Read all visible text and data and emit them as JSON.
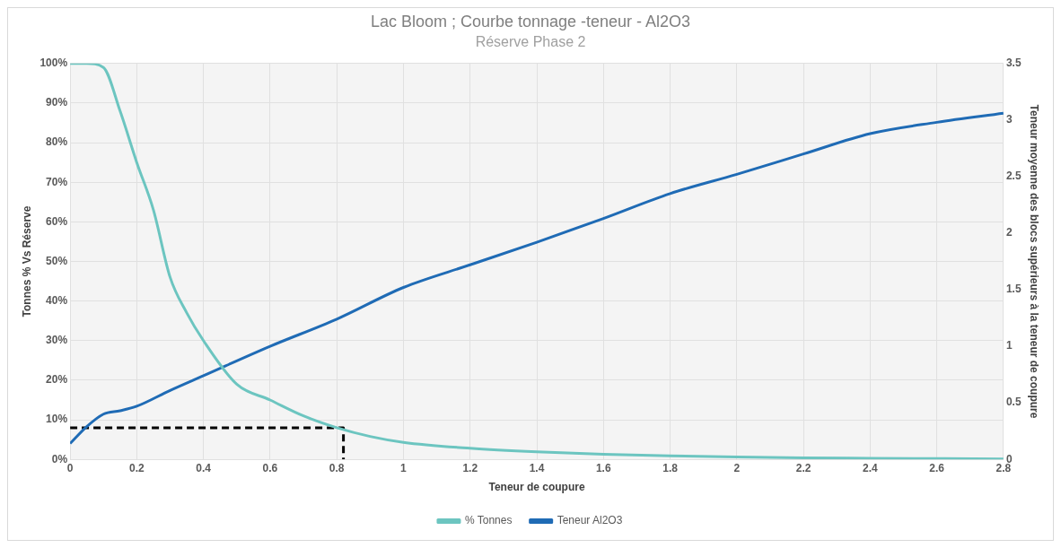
{
  "chart_data": {
    "type": "line",
    "title": "Lac Bloom ; Courbe tonnage -teneur - Al2O3",
    "subtitle": "Réserve Phase 2",
    "xlabel": "Teneur de coupure",
    "ylabel": "Tonnes % Vs Réserve",
    "y2label": "Teneur moyenne des blocs supérieurs à la teneur de coupure",
    "xlim": [
      0,
      2.8
    ],
    "xticks": [
      0,
      0.2,
      0.4,
      0.6,
      0.8,
      1,
      1.2,
      1.4,
      1.6,
      1.8,
      2,
      2.2,
      2.4,
      2.6,
      2.8
    ],
    "ylim": [
      0,
      100
    ],
    "yticks": [
      {
        "value": 0,
        "label": "0%"
      },
      {
        "value": 10,
        "label": "10%"
      },
      {
        "value": 20,
        "label": "20%"
      },
      {
        "value": 30,
        "label": "30%"
      },
      {
        "value": 40,
        "label": "40%"
      },
      {
        "value": 50,
        "label": "50%"
      },
      {
        "value": 60,
        "label": "60%"
      },
      {
        "value": 70,
        "label": "70%"
      },
      {
        "value": 80,
        "label": "80%"
      },
      {
        "value": 90,
        "label": "90%"
      },
      {
        "value": 100,
        "label": "100%"
      }
    ],
    "y2lim": [
      0,
      3.5
    ],
    "y2ticks": [
      0,
      0.5,
      1,
      1.5,
      2,
      2.5,
      3,
      3.5
    ],
    "grid": true,
    "legend": "bottom",
    "marker": "none",
    "series": [
      {
        "name": "% Tonnes",
        "color": "#6cc5c0",
        "x": [
          0,
          0.05,
          0.1,
          0.15,
          0.2,
          0.25,
          0.3,
          0.35,
          0.4,
          0.5,
          0.6,
          0.7,
          0.8,
          0.9,
          1,
          1.2,
          1.4,
          1.6,
          1.8,
          2,
          2.2,
          2.4,
          2.6,
          2.8
        ],
        "values": [
          100,
          100,
          99,
          88,
          75,
          63,
          46,
          37,
          30,
          19,
          15,
          11,
          8,
          5.8,
          4.3,
          2.8,
          1.9,
          1.3,
          0.9,
          0.6,
          0.4,
          0.3,
          0.2,
          0.1
        ]
      },
      {
        "name": "Teneur Al2O3",
        "color": "#1f6bb5",
        "axis": "y2",
        "x": [
          0,
          0.05,
          0.1,
          0.15,
          0.2,
          0.3,
          0.4,
          0.6,
          0.8,
          1,
          1.2,
          1.4,
          1.6,
          1.8,
          2,
          2.2,
          2.4,
          2.6,
          2.8
        ],
        "values": [
          0.14,
          0.29,
          0.4,
          0.43,
          0.47,
          0.61,
          0.74,
          1.0,
          1.24,
          1.52,
          1.72,
          1.92,
          2.13,
          2.35,
          2.52,
          2.7,
          2.88,
          2.98,
          3.06
        ]
      },
      {
        "color": "#000000",
        "line_style": "dashed",
        "x": [
          0,
          0.82,
          0.82
        ],
        "values": [
          8,
          8,
          0
        ]
      }
    ]
  }
}
